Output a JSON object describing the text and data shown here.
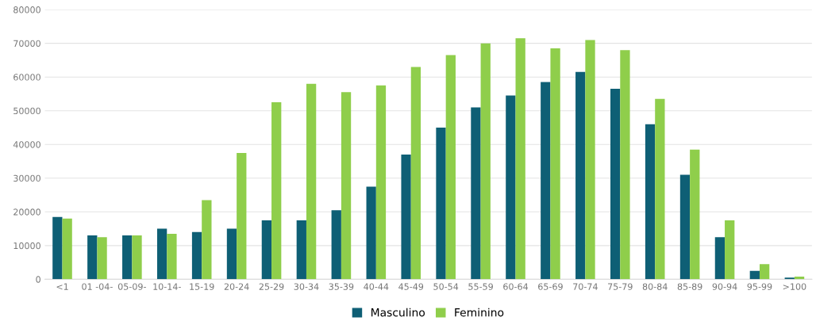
{
  "chart_data": {
    "type": "bar",
    "categories": [
      "<1",
      "01 -04-",
      "05-09-",
      "10-14-",
      "15-19",
      "20-24",
      "25-29",
      "30-34",
      "35-39",
      "40-44",
      "45-49",
      "50-54",
      "55-59",
      "60-64",
      "65-69",
      "70-74",
      "75-79",
      "80-84",
      "85-89",
      "90-94",
      "95-99",
      ">100"
    ],
    "series": [
      {
        "name": "Masculino",
        "color": "#0e5f75",
        "values": [
          18500,
          13000,
          13000,
          15000,
          14000,
          15000,
          17500,
          17500,
          20500,
          27500,
          37000,
          45000,
          51000,
          54500,
          58500,
          61500,
          56500,
          46000,
          31000,
          12500,
          2500,
          500
        ]
      },
      {
        "name": "Feminino",
        "color": "#8fce4b",
        "values": [
          18000,
          12500,
          13000,
          13500,
          23500,
          37500,
          52500,
          58000,
          55500,
          57500,
          63000,
          66500,
          70000,
          71500,
          68500,
          71000,
          68000,
          53500,
          38500,
          17500,
          4500,
          800
        ]
      }
    ],
    "ylim": [
      0,
      80000
    ],
    "yticks": [
      0,
      10000,
      20000,
      30000,
      40000,
      50000,
      60000,
      70000,
      80000
    ],
    "grid": "y",
    "legend": "bottom"
  }
}
